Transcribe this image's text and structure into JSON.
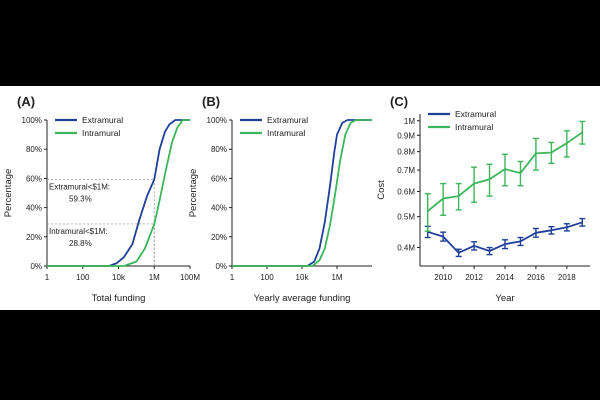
{
  "colors": {
    "extramural": "#1f3f99",
    "intramural": "#3db55a",
    "ref": "#888888"
  },
  "chart_data": [
    {
      "panel": "(A)",
      "type": "line",
      "xlabel": "Total funding",
      "ylabel": "Percentage",
      "xscale": "log",
      "xlim": [
        1,
        100000000
      ],
      "ylim": [
        0,
        100
      ],
      "xticks": [
        {
          "v": 1,
          "label": "1"
        },
        {
          "v": 100,
          "label": "100"
        },
        {
          "v": 10000,
          "label": "10k"
        },
        {
          "v": 1000000,
          "label": "1M"
        },
        {
          "v": 100000000,
          "label": "100M"
        }
      ],
      "yticks": [
        {
          "v": 0,
          "label": "0%"
        },
        {
          "v": 20,
          "label": "20%"
        },
        {
          "v": 40,
          "label": "40%"
        },
        {
          "v": 60,
          "label": "60%"
        },
        {
          "v": 80,
          "label": "80%"
        },
        {
          "v": 100,
          "label": "100%"
        }
      ],
      "legend": "top-left",
      "series": [
        {
          "name": "Extramural",
          "color_key": "extramural",
          "x": [
            1,
            3000,
            8000,
            20000,
            60000,
            150000,
            400000,
            1000000,
            2000000,
            4000000,
            7000000,
            15000000,
            100000000
          ],
          "y": [
            0,
            0,
            2,
            6,
            15,
            32,
            48,
            59.3,
            80,
            92,
            97,
            100,
            100
          ]
        },
        {
          "name": "Intramural",
          "color_key": "intramural",
          "x": [
            1,
            20000,
            100000,
            300000,
            1000000,
            2000000,
            4000000,
            10000000,
            20000000,
            40000000,
            100000000
          ],
          "y": [
            0,
            0,
            3,
            12,
            28.8,
            45,
            63,
            85,
            95,
            100,
            100
          ]
        }
      ],
      "annotations": [
        {
          "line1": "Extramural<$1M:",
          "line2": "59.3%",
          "x": 1000000,
          "y": 59.3
        },
        {
          "line1": "Intramural<$1M:",
          "line2": "28.8%",
          "x": 1000000,
          "y": 28.8
        }
      ]
    },
    {
      "panel": "(B)",
      "type": "line",
      "xlabel": "Yearly average funding",
      "ylabel": "Percentage",
      "xscale": "log",
      "xlim": [
        1,
        100000000
      ],
      "ylim": [
        0,
        100
      ],
      "xticks": [
        {
          "v": 1,
          "label": "1"
        },
        {
          "v": 100,
          "label": "100"
        },
        {
          "v": 10000,
          "label": "10k"
        },
        {
          "v": 1000000,
          "label": "1M"
        }
      ],
      "yticks": [
        {
          "v": 0,
          "label": "0%"
        },
        {
          "v": 20,
          "label": "20%"
        },
        {
          "v": 40,
          "label": "40%"
        },
        {
          "v": 60,
          "label": "60%"
        },
        {
          "v": 80,
          "label": "80%"
        },
        {
          "v": 100,
          "label": "100%"
        }
      ],
      "legend": "top-left",
      "series": [
        {
          "name": "Extramural",
          "color_key": "extramural",
          "x": [
            1,
            20000,
            50000,
            100000,
            200000,
            400000,
            700000,
            1000000,
            2000000,
            4000000,
            100000000
          ],
          "y": [
            0,
            0,
            3,
            12,
            30,
            55,
            78,
            90,
            98,
            100,
            100
          ]
        },
        {
          "name": "Intramural",
          "color_key": "intramural",
          "x": [
            1,
            40000,
            100000,
            200000,
            400000,
            800000,
            1500000,
            3000000,
            6000000,
            12000000,
            100000000
          ],
          "y": [
            0,
            0,
            4,
            12,
            28,
            50,
            72,
            90,
            98,
            100,
            100
          ]
        }
      ]
    },
    {
      "panel": "(C)",
      "type": "line",
      "xlabel": "Year",
      "ylabel": "Cost",
      "yscale": "log",
      "xlim": [
        2008.5,
        2019.5
      ],
      "ylim": [
        350000,
        1050000
      ],
      "xticks": [
        {
          "v": 2010,
          "label": "2010"
        },
        {
          "v": 2012,
          "label": "2012"
        },
        {
          "v": 2014,
          "label": "2014"
        },
        {
          "v": 2016,
          "label": "2016"
        },
        {
          "v": 2018,
          "label": "2018"
        }
      ],
      "yticks": [
        {
          "v": 400000,
          "label": "0.4M"
        },
        {
          "v": 500000,
          "label": "0.5M"
        },
        {
          "v": 600000,
          "label": "0.6M"
        },
        {
          "v": 700000,
          "label": "0.7M"
        },
        {
          "v": 800000,
          "label": "0.8M"
        },
        {
          "v": 900000,
          "label": "0.9M"
        },
        {
          "v": 1000000,
          "label": "1M"
        }
      ],
      "legend": "top-left",
      "series": [
        {
          "name": "Extramural",
          "color_key": "extramural",
          "x": [
            2009,
            2010,
            2011,
            2012,
            2013,
            2014,
            2015,
            2016,
            2017,
            2018,
            2019
          ],
          "y": [
            448000,
            433000,
            385000,
            405000,
            390000,
            410000,
            418000,
            445000,
            453000,
            463000,
            480000
          ],
          "err": [
            18000,
            14000,
            10000,
            12000,
            10000,
            13000,
            12000,
            14000,
            12000,
            12000,
            13000
          ]
        },
        {
          "name": "Intramural",
          "color_key": "intramural",
          "x": [
            2009,
            2010,
            2011,
            2012,
            2013,
            2014,
            2015,
            2016,
            2017,
            2018,
            2019
          ],
          "y": [
            520000,
            570000,
            580000,
            635000,
            655000,
            705000,
            685000,
            790000,
            795000,
            850000,
            920000
          ],
          "err": [
            70000,
            65000,
            55000,
            80000,
            75000,
            80000,
            60000,
            90000,
            60000,
            80000,
            75000
          ]
        }
      ]
    }
  ]
}
